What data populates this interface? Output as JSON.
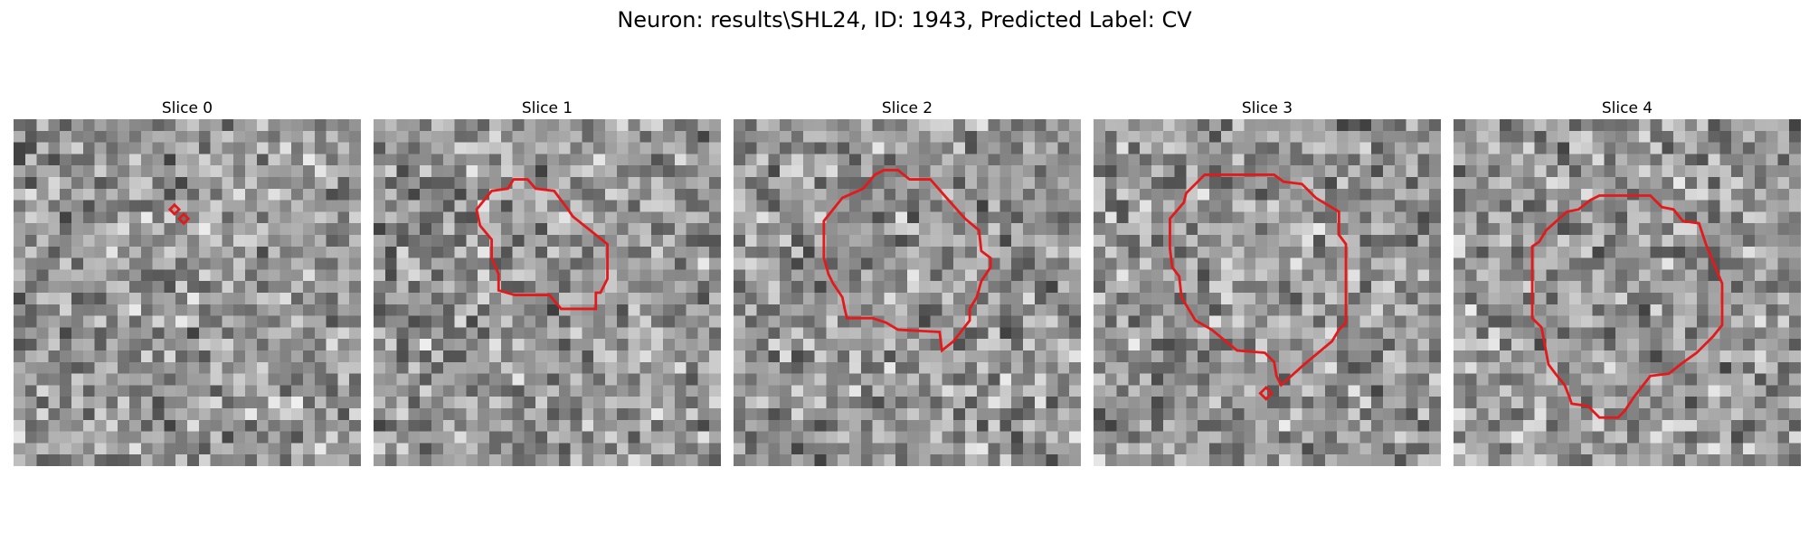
{
  "figure": {
    "title": "Neuron: results\\SHL24, ID: 1943, Predicted Label: CV",
    "contour_color": "#e31a1c",
    "colormap": "gray",
    "grid_size": 30
  },
  "panels": [
    {
      "title": "Slice 0"
    },
    {
      "title": "Slice 1"
    },
    {
      "title": "Slice 2"
    },
    {
      "title": "Slice 3"
    },
    {
      "title": "Slice 4"
    }
  ]
}
